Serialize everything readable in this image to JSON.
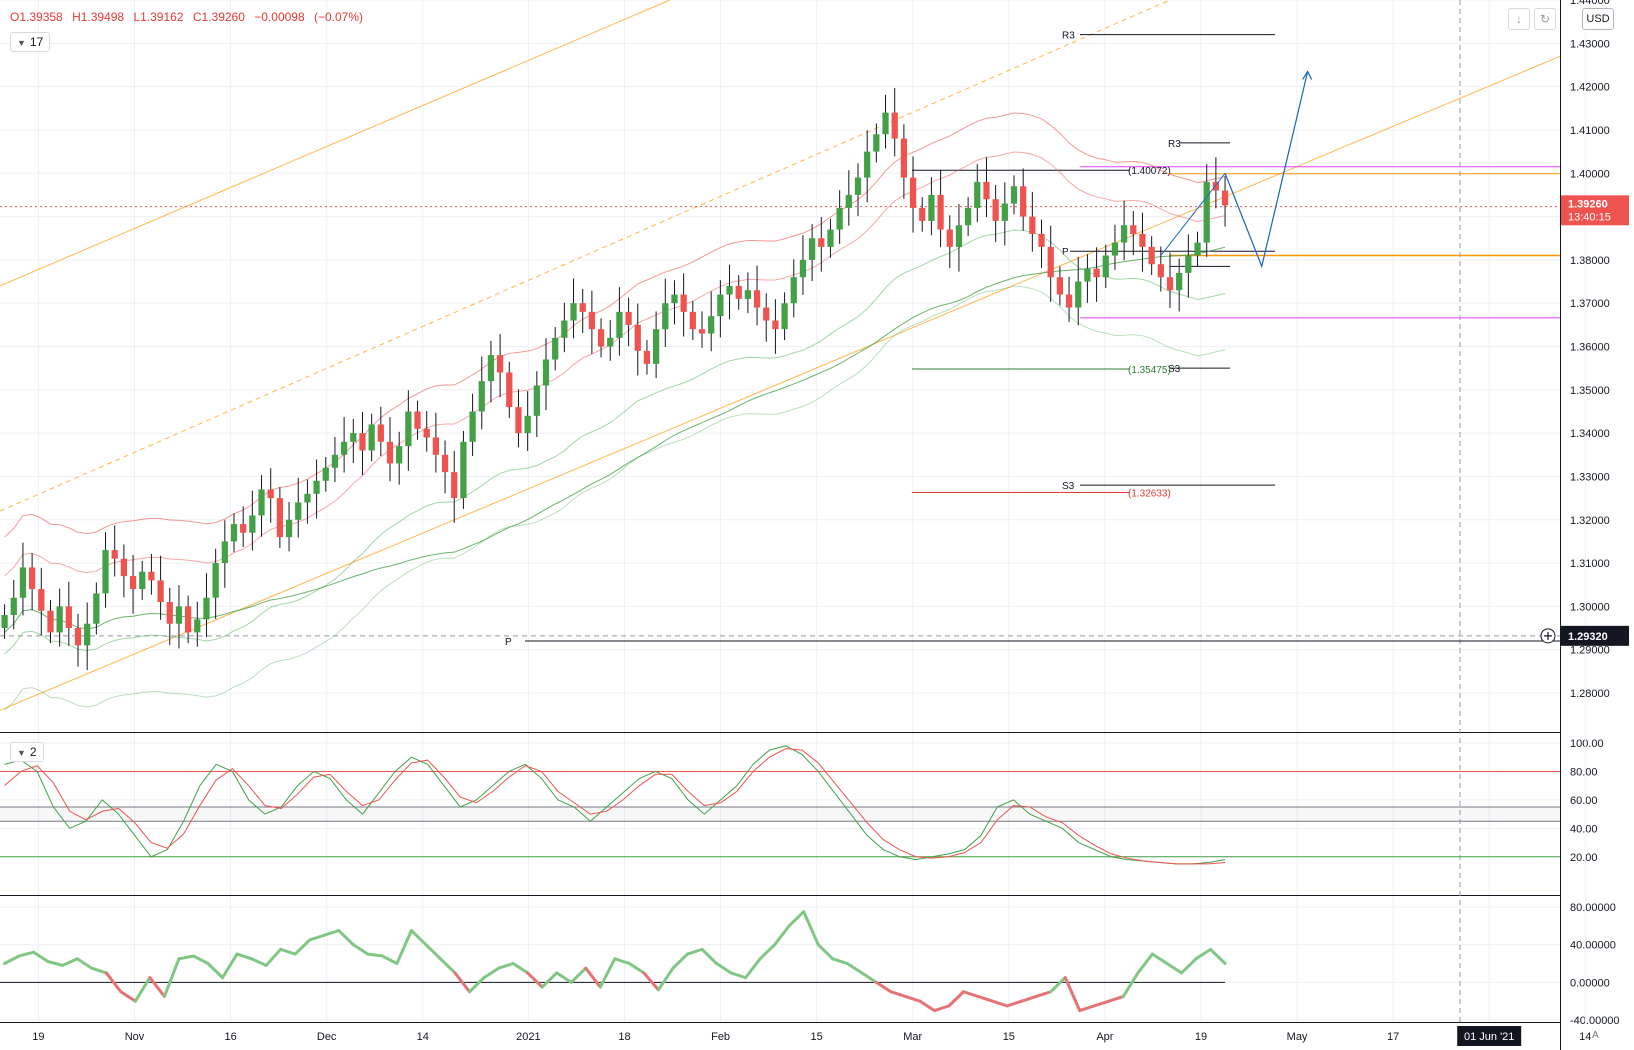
{
  "header": {
    "ohlc": [
      "O1.39358",
      "H1.39498",
      "L1.39162",
      "C1.39260",
      "−0.00098",
      "(−0.07%)"
    ],
    "indicator_badge_main": "17",
    "indicator_badge_stoch": "2",
    "currency": "USD",
    "auto_label": "A"
  },
  "colors": {
    "up": "#43a047",
    "down": "#ef5350",
    "grid": "#eef0f3",
    "axis_text": "#131722",
    "price_marker": "#ef5350",
    "line_marker": "#131722"
  },
  "chart_data": [
    {
      "type": "candlestick",
      "pane": "price",
      "title": "",
      "ylim": [
        1.271,
        1.44
      ],
      "y_ticks": [
        "1.44000",
        "1.43000",
        "1.42000",
        "1.41000",
        "1.40000",
        "1.39000",
        "1.38000",
        "1.37000",
        "1.36000",
        "1.35000",
        "1.34000",
        "1.33000",
        "1.32000",
        "1.31000",
        "1.30000",
        "1.29000",
        "1.28000"
      ],
      "x_ticks": [
        {
          "label": "19",
          "x": 4
        },
        {
          "label": "Nov",
          "x": 14
        },
        {
          "label": "16",
          "x": 24
        },
        {
          "label": "Dec",
          "x": 34
        },
        {
          "label": "14",
          "x": 44
        },
        {
          "label": "2021",
          "x": 55
        },
        {
          "label": "18",
          "x": 65
        },
        {
          "label": "Feb",
          "x": 75
        },
        {
          "label": "15",
          "x": 85
        },
        {
          "label": "Mar",
          "x": 95
        },
        {
          "label": "15",
          "x": 105
        },
        {
          "label": "Apr",
          "x": 115
        },
        {
          "label": "19",
          "x": 125
        },
        {
          "label": "May",
          "x": 135
        },
        {
          "label": "17",
          "x": 145
        },
        {
          "label": "01 Jun '21",
          "x": 155
        },
        {
          "label": "14",
          "x": 165
        }
      ],
      "closes": [
        1.298,
        1.302,
        1.309,
        1.304,
        1.299,
        1.294,
        1.3,
        1.295,
        1.291,
        1.296,
        1.303,
        1.313,
        1.311,
        1.307,
        1.304,
        1.308,
        1.306,
        1.301,
        1.296,
        1.3,
        1.294,
        1.297,
        1.302,
        1.31,
        1.315,
        1.319,
        1.317,
        1.321,
        1.327,
        1.325,
        1.316,
        1.32,
        1.324,
        1.326,
        1.329,
        1.332,
        1.335,
        1.338,
        1.34,
        1.336,
        1.342,
        1.338,
        1.333,
        1.337,
        1.345,
        1.341,
        1.339,
        1.335,
        1.331,
        1.325,
        1.338,
        1.345,
        1.352,
        1.358,
        1.354,
        1.346,
        1.34,
        1.344,
        1.351,
        1.357,
        1.362,
        1.366,
        1.37,
        1.368,
        1.364,
        1.36,
        1.362,
        1.368,
        1.365,
        1.359,
        1.356,
        1.364,
        1.37,
        1.372,
        1.368,
        1.364,
        1.363,
        1.367,
        1.372,
        1.374,
        1.371,
        1.373,
        1.369,
        1.366,
        1.364,
        1.37,
        1.376,
        1.38,
        1.385,
        1.383,
        1.387,
        1.392,
        1.395,
        1.399,
        1.405,
        1.409,
        1.414,
        1.408,
        1.399,
        1.392,
        1.389,
        1.395,
        1.387,
        1.383,
        1.388,
        1.392,
        1.398,
        1.394,
        1.389,
        1.393,
        1.397,
        1.39,
        1.386,
        1.383,
        1.376,
        1.372,
        1.369,
        1.375,
        1.378,
        1.376,
        1.381,
        1.384,
        1.388,
        1.386,
        1.383,
        1.379,
        1.376,
        1.373,
        1.377,
        1.381,
        1.384,
        1.398,
        1.396,
        1.3926
      ],
      "price_label": {
        "value": "1.39260",
        "countdown": "13:40:15"
      },
      "crosshair_label": "1.29320",
      "level_labels": {
        "r3_top": "R3",
        "r3_mid": "R3",
        "p_mid": "P",
        "s3_mid": "S3",
        "s3_low": "S3",
        "p_low": "P",
        "v_1_40072": "(1.40072)",
        "v_1_35475": "(1.35475)",
        "v_1_32633": "(1.32633)"
      }
    },
    {
      "type": "line",
      "pane": "stochastic",
      "title": "",
      "ylim": [
        0,
        100
      ],
      "y_ticks": [
        "100.00",
        "80.00",
        "60.00",
        "40.00",
        "20.00"
      ],
      "series": [
        {
          "color": "#43a047",
          "values": [
            85,
            88,
            80,
            55,
            40,
            45,
            60,
            50,
            35,
            20,
            25,
            45,
            70,
            85,
            80,
            60,
            50,
            55,
            70,
            80,
            75,
            60,
            50,
            65,
            80,
            90,
            85,
            70,
            55,
            60,
            70,
            80,
            85,
            75,
            60,
            55,
            45,
            55,
            65,
            75,
            80,
            75,
            60,
            50,
            60,
            70,
            85,
            95,
            98,
            92,
            80,
            65,
            50,
            35,
            25,
            20,
            18,
            20,
            22,
            25,
            35,
            55,
            60,
            50,
            45,
            40,
            30,
            25,
            20,
            18,
            17,
            16,
            15,
            15,
            16,
            18
          ]
        },
        {
          "color": "#ef5350",
          "values": [
            70,
            80,
            84,
            72,
            52,
            46,
            52,
            54,
            44,
            30,
            26,
            36,
            56,
            74,
            82,
            70,
            56,
            54,
            64,
            76,
            78,
            66,
            56,
            60,
            74,
            86,
            88,
            76,
            62,
            58,
            66,
            76,
            84,
            80,
            66,
            58,
            50,
            52,
            60,
            70,
            78,
            78,
            66,
            56,
            58,
            66,
            80,
            90,
            96,
            95,
            86,
            72,
            58,
            44,
            32,
            25,
            20,
            19,
            20,
            23,
            30,
            46,
            56,
            55,
            48,
            44,
            35,
            28,
            22,
            19,
            17,
            16,
            15,
            15,
            15,
            16
          ]
        }
      ]
    },
    {
      "type": "line",
      "pane": "oscillator",
      "title": "",
      "ylim": [
        -40,
        80
      ],
      "y_ticks": [
        "80.00000",
        "40.00000",
        "0.00000",
        "-40.00000"
      ],
      "values": [
        20,
        28,
        32,
        22,
        18,
        25,
        15,
        10,
        -10,
        -20,
        5,
        -15,
        25,
        28,
        20,
        5,
        30,
        25,
        18,
        35,
        30,
        45,
        50,
        55,
        40,
        30,
        28,
        20,
        55,
        40,
        25,
        10,
        -10,
        5,
        15,
        20,
        10,
        -5,
        10,
        0,
        15,
        -5,
        25,
        20,
        10,
        -8,
        15,
        30,
        35,
        20,
        10,
        5,
        25,
        40,
        60,
        75,
        40,
        25,
        20,
        10,
        0,
        -10,
        -15,
        -20,
        -30,
        -25,
        -10,
        -15,
        -20,
        -25,
        -20,
        -15,
        -10,
        5,
        -30,
        -25,
        -20,
        -15,
        10,
        30,
        20,
        10,
        25,
        35,
        20
      ]
    }
  ]
}
